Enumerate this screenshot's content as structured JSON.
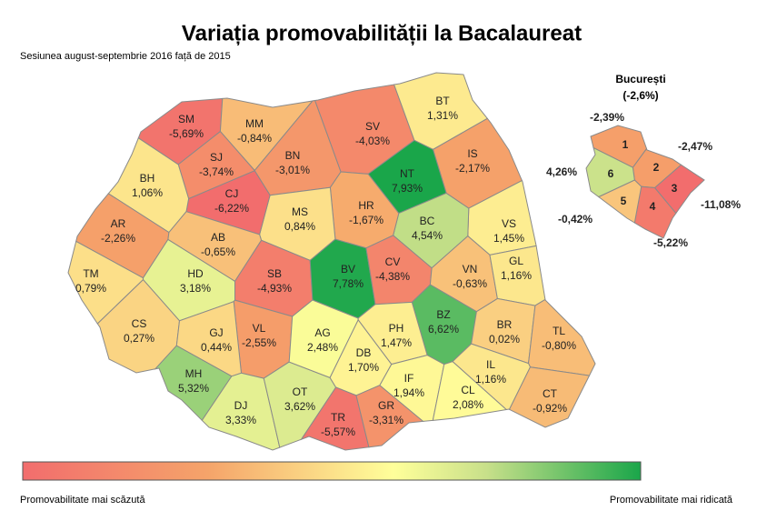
{
  "header": {
    "title": "Variația promovabilității la Bacalaureat",
    "subtitle": "Sesiunea august-septembrie 2016 față de 2015"
  },
  "counties": [
    {
      "code": "SM",
      "value": -5.69,
      "label": "-5,69%"
    },
    {
      "code": "MM",
      "value": -0.84,
      "label": "-0,84%"
    },
    {
      "code": "BN",
      "value": -3.01,
      "label": "-3,01%"
    },
    {
      "code": "SV",
      "value": -4.03,
      "label": "-4,03%"
    },
    {
      "code": "BT",
      "value": 1.31,
      "label": "1,31%"
    },
    {
      "code": "IS",
      "value": -2.17,
      "label": "-2,17%"
    },
    {
      "code": "NT",
      "value": 7.93,
      "label": "7,93%"
    },
    {
      "code": "VS",
      "value": 1.45,
      "label": "1,45%"
    },
    {
      "code": "BC",
      "value": 4.54,
      "label": "4,54%"
    },
    {
      "code": "HR",
      "value": -1.67,
      "label": "-1,67%"
    },
    {
      "code": "MS",
      "value": 0.84,
      "label": "0,84%"
    },
    {
      "code": "CJ",
      "value": -6.22,
      "label": "-6,22%"
    },
    {
      "code": "SJ",
      "value": -3.74,
      "label": "-3,74%"
    },
    {
      "code": "BH",
      "value": 1.06,
      "label": "1,06%"
    },
    {
      "code": "AR",
      "value": -2.26,
      "label": "-2,26%"
    },
    {
      "code": "AB",
      "value": -0.65,
      "label": "-0,65%"
    },
    {
      "code": "HD",
      "value": 3.18,
      "label": "3,18%"
    },
    {
      "code": "TM",
      "value": 0.79,
      "label": "0,79%"
    },
    {
      "code": "CS",
      "value": 0.27,
      "label": "0,27%"
    },
    {
      "code": "SB",
      "value": -4.93,
      "label": "-4,93%"
    },
    {
      "code": "BV",
      "value": 7.78,
      "label": "7,78%"
    },
    {
      "code": "CV",
      "value": -4.38,
      "label": "-4,38%"
    },
    {
      "code": "VN",
      "value": -0.63,
      "label": "-0,63%"
    },
    {
      "code": "GL",
      "value": 1.16,
      "label": "1,16%"
    },
    {
      "code": "BZ",
      "value": 6.62,
      "label": "6,62%"
    },
    {
      "code": "BR",
      "value": 0.02,
      "label": "0,02%"
    },
    {
      "code": "TL",
      "value": -0.8,
      "label": "-0,80%"
    },
    {
      "code": "VL",
      "value": -2.55,
      "label": "-2,55%"
    },
    {
      "code": "GJ",
      "value": 0.44,
      "label": "0,44%"
    },
    {
      "code": "MH",
      "value": 5.32,
      "label": "5,32%"
    },
    {
      "code": "DJ",
      "value": 3.33,
      "label": "3,33%"
    },
    {
      "code": "OT",
      "value": 3.62,
      "label": "3,62%"
    },
    {
      "code": "AG",
      "value": 2.48,
      "label": "2,48%"
    },
    {
      "code": "DB",
      "value": 1.7,
      "label": "1,70%"
    },
    {
      "code": "PH",
      "value": 1.47,
      "label": "1,47%"
    },
    {
      "code": "TR",
      "value": -5.57,
      "label": "-5,57%"
    },
    {
      "code": "GR",
      "value": -3.31,
      "label": "-3,31%"
    },
    {
      "code": "IF",
      "value": 1.94,
      "label": "1,94%"
    },
    {
      "code": "IL",
      "value": 1.16,
      "label": "1,16%"
    },
    {
      "code": "CL",
      "value": 2.08,
      "label": "2,08%"
    },
    {
      "code": "CT",
      "value": -0.92,
      "label": "-0,92%"
    }
  ],
  "bucharest": {
    "name": "București",
    "value": -2.6,
    "label": "(-2,6%)",
    "sectors": [
      {
        "number": "1",
        "value": -2.39,
        "label": "-2,39%"
      },
      {
        "number": "2",
        "value": -2.47,
        "label": "-2,47%"
      },
      {
        "number": "3",
        "value": -11.08,
        "label": "-11,08%"
      },
      {
        "number": "4",
        "value": -5.22,
        "label": "-5,22%"
      },
      {
        "number": "5",
        "value": -0.42,
        "label": "-0,42%"
      },
      {
        "number": "6",
        "value": 4.26,
        "label": "4,26%"
      }
    ]
  },
  "legend": {
    "low": "Promovabilitate mai scăzută",
    "high": "Promovabilitate mai ridicată"
  }
}
